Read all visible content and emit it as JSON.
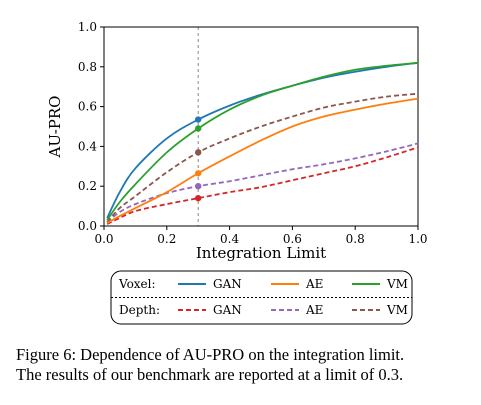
{
  "chart_data": {
    "type": "line",
    "xlabel": "Integration Limit",
    "ylabel": "AU-PRO",
    "xlim": [
      0.0,
      1.0
    ],
    "ylim": [
      0.0,
      1.0
    ],
    "x_ticks": [
      "0.0",
      "0.2",
      "0.4",
      "0.6",
      "0.8",
      "1.0"
    ],
    "y_ticks": [
      "0.0",
      "0.2",
      "0.4",
      "0.6",
      "0.8",
      "1.0"
    ],
    "grid": false,
    "reference_line_x": 0.3,
    "legend": {
      "placement": "below",
      "rows": [
        {
          "label": "Voxel:",
          "entries": [
            "GAN",
            "AE",
            "VM"
          ]
        },
        {
          "label": "Depth:",
          "entries": [
            "GAN",
            "AE",
            "VM"
          ]
        }
      ]
    },
    "series": [
      {
        "name": "GAN",
        "group": "Voxel",
        "style": "solid",
        "color": "#1f77b4",
        "x": [
          0.01,
          0.05,
          0.1,
          0.2,
          0.3,
          0.4,
          0.5,
          0.6,
          0.7,
          0.8,
          0.9,
          1.0
        ],
        "y": [
          0.04,
          0.17,
          0.29,
          0.44,
          0.535,
          0.605,
          0.66,
          0.705,
          0.745,
          0.775,
          0.8,
          0.82
        ]
      },
      {
        "name": "AE",
        "group": "Voxel",
        "style": "solid",
        "color": "#ff7f0e",
        "x": [
          0.01,
          0.05,
          0.1,
          0.2,
          0.3,
          0.4,
          0.5,
          0.6,
          0.7,
          0.8,
          0.9,
          1.0
        ],
        "y": [
          0.015,
          0.05,
          0.09,
          0.17,
          0.265,
          0.35,
          0.43,
          0.5,
          0.55,
          0.585,
          0.615,
          0.64
        ]
      },
      {
        "name": "VM",
        "group": "Voxel",
        "style": "solid",
        "color": "#2ca02c",
        "x": [
          0.01,
          0.05,
          0.1,
          0.2,
          0.3,
          0.4,
          0.5,
          0.6,
          0.7,
          0.8,
          0.9,
          1.0
        ],
        "y": [
          0.03,
          0.12,
          0.21,
          0.37,
          0.49,
          0.585,
          0.655,
          0.705,
          0.75,
          0.785,
          0.805,
          0.82
        ]
      },
      {
        "name": "GAN",
        "group": "Depth",
        "style": "dashed",
        "color": "#d62728",
        "x": [
          0.01,
          0.05,
          0.1,
          0.2,
          0.3,
          0.4,
          0.5,
          0.6,
          0.7,
          0.8,
          0.9,
          1.0
        ],
        "y": [
          0.01,
          0.04,
          0.075,
          0.11,
          0.14,
          0.17,
          0.195,
          0.23,
          0.265,
          0.3,
          0.345,
          0.395
        ]
      },
      {
        "name": "AE",
        "group": "Depth",
        "style": "dashed",
        "color": "#9467bd",
        "x": [
          0.01,
          0.05,
          0.1,
          0.2,
          0.3,
          0.4,
          0.5,
          0.6,
          0.7,
          0.8,
          0.9,
          1.0
        ],
        "y": [
          0.02,
          0.07,
          0.11,
          0.165,
          0.2,
          0.225,
          0.255,
          0.285,
          0.31,
          0.34,
          0.375,
          0.415
        ]
      },
      {
        "name": "VM",
        "group": "Depth",
        "style": "dashed",
        "color": "#8c564b",
        "x": [
          0.01,
          0.05,
          0.1,
          0.2,
          0.3,
          0.4,
          0.5,
          0.6,
          0.7,
          0.8,
          0.9,
          1.0
        ],
        "y": [
          0.02,
          0.09,
          0.15,
          0.27,
          0.37,
          0.44,
          0.5,
          0.55,
          0.595,
          0.625,
          0.65,
          0.665
        ]
      }
    ]
  },
  "caption": {
    "line1": "Figure 6: Dependence of AU-PRO on the integration limit.",
    "line2": "The results of our benchmark are reported at a limit of 0.3."
  }
}
